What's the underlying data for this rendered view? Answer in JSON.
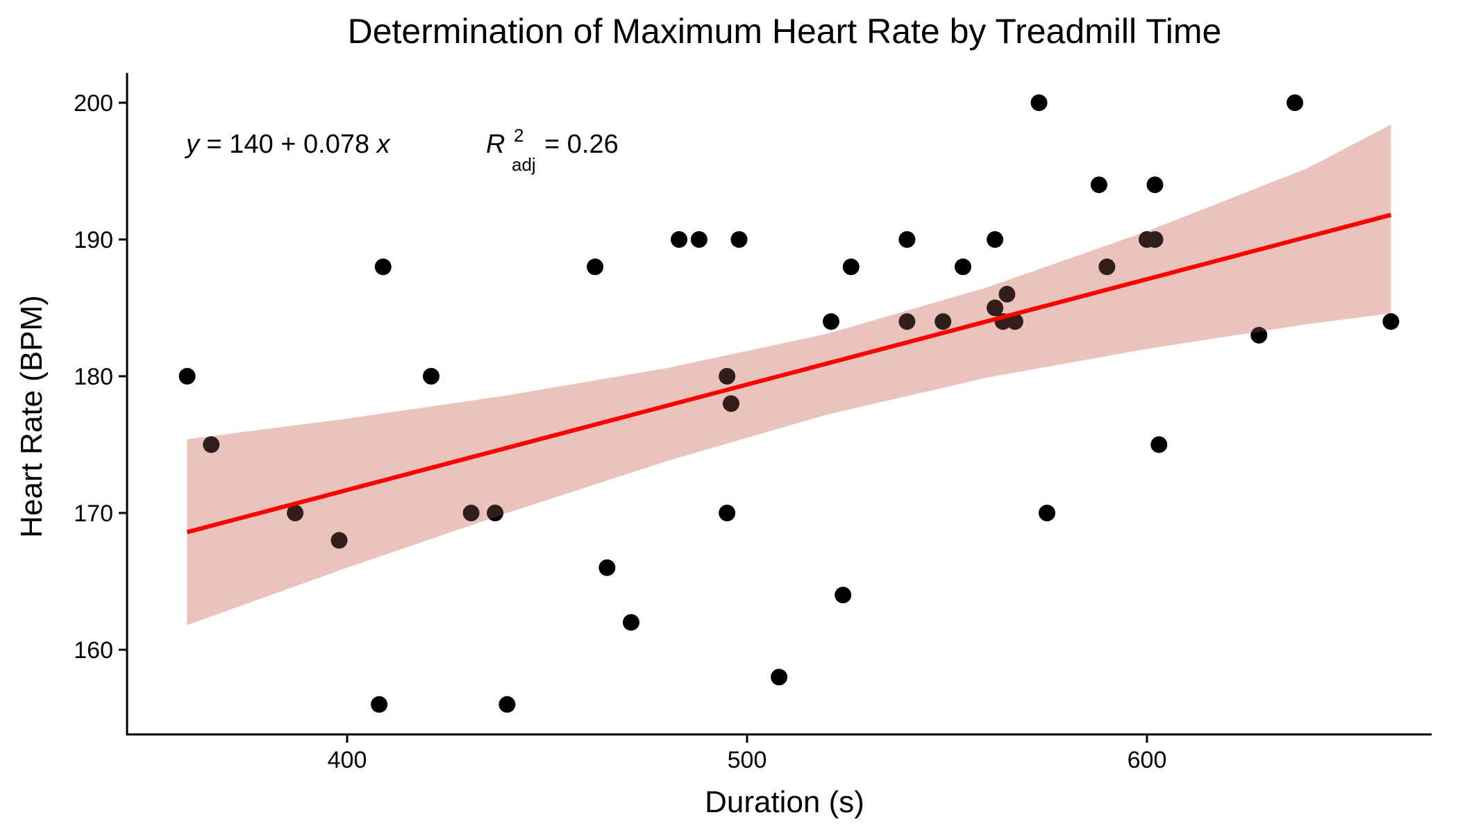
{
  "chart_data": {
    "type": "scatter",
    "title": "Determination of Maximum Heart Rate by Treadmill Time",
    "xlabel": "Duration (s)",
    "ylabel": "Heart Rate (BPM)",
    "xlim": [
      345,
      675
    ],
    "ylim": [
      153.5,
      202
    ],
    "x_ticks": [
      400,
      500,
      600
    ],
    "y_ticks": [
      160,
      170,
      180,
      190,
      200
    ],
    "grid": false,
    "legend": "none",
    "colors": {
      "points": "#000000",
      "fit_line": "#ff0000",
      "ci_band": "#d98f85"
    },
    "points": [
      {
        "x": 360,
        "y": 180
      },
      {
        "x": 366,
        "y": 175
      },
      {
        "x": 387,
        "y": 170
      },
      {
        "x": 398,
        "y": 168
      },
      {
        "x": 408,
        "y": 156
      },
      {
        "x": 409,
        "y": 188
      },
      {
        "x": 421,
        "y": 180
      },
      {
        "x": 431,
        "y": 170
      },
      {
        "x": 437,
        "y": 170
      },
      {
        "x": 440,
        "y": 156
      },
      {
        "x": 462,
        "y": 188
      },
      {
        "x": 465,
        "y": 166
      },
      {
        "x": 471,
        "y": 162
      },
      {
        "x": 483,
        "y": 190
      },
      {
        "x": 488,
        "y": 190
      },
      {
        "x": 495,
        "y": 180
      },
      {
        "x": 495,
        "y": 170
      },
      {
        "x": 496,
        "y": 178
      },
      {
        "x": 498,
        "y": 190
      },
      {
        "x": 508,
        "y": 158
      },
      {
        "x": 521,
        "y": 184
      },
      {
        "x": 524,
        "y": 164
      },
      {
        "x": 526,
        "y": 188
      },
      {
        "x": 540,
        "y": 190
      },
      {
        "x": 540,
        "y": 184
      },
      {
        "x": 549,
        "y": 184
      },
      {
        "x": 554,
        "y": 188
      },
      {
        "x": 562,
        "y": 190
      },
      {
        "x": 562,
        "y": 185
      },
      {
        "x": 564,
        "y": 184
      },
      {
        "x": 565,
        "y": 186
      },
      {
        "x": 567,
        "y": 184
      },
      {
        "x": 573,
        "y": 200
      },
      {
        "x": 575,
        "y": 170
      },
      {
        "x": 588,
        "y": 194
      },
      {
        "x": 590,
        "y": 188
      },
      {
        "x": 600,
        "y": 190
      },
      {
        "x": 602,
        "y": 190
      },
      {
        "x": 602,
        "y": 194
      },
      {
        "x": 603,
        "y": 175
      },
      {
        "x": 628,
        "y": 183
      },
      {
        "x": 637,
        "y": 200
      },
      {
        "x": 661,
        "y": 184
      }
    ],
    "fit": {
      "x_start": 360,
      "x_end": 661,
      "y_start": 168.6,
      "y_end": 191.8
    },
    "ci_band": [
      {
        "x": 360,
        "lower": 161.8,
        "upper": 175.4
      },
      {
        "x": 400,
        "lower": 166.0,
        "upper": 176.9
      },
      {
        "x": 440,
        "lower": 170.0,
        "upper": 178.6
      },
      {
        "x": 480,
        "lower": 173.8,
        "upper": 180.6
      },
      {
        "x": 520,
        "lower": 177.2,
        "upper": 183.1
      },
      {
        "x": 560,
        "lower": 179.9,
        "upper": 186.5
      },
      {
        "x": 600,
        "lower": 182.0,
        "upper": 190.6
      },
      {
        "x": 640,
        "lower": 183.8,
        "upper": 195.2
      },
      {
        "x": 661,
        "lower": 184.6,
        "upper": 198.4
      }
    ],
    "annotation": {
      "equation": "y = 140 + 0.078 x",
      "eq_y": "y",
      "eq_mid": " = 140 + 0.078 ",
      "eq_x": "x",
      "r2_R": "R",
      "r2_sup": "2",
      "r2_sub": "adj",
      "r2_value": " = 0.26"
    }
  }
}
